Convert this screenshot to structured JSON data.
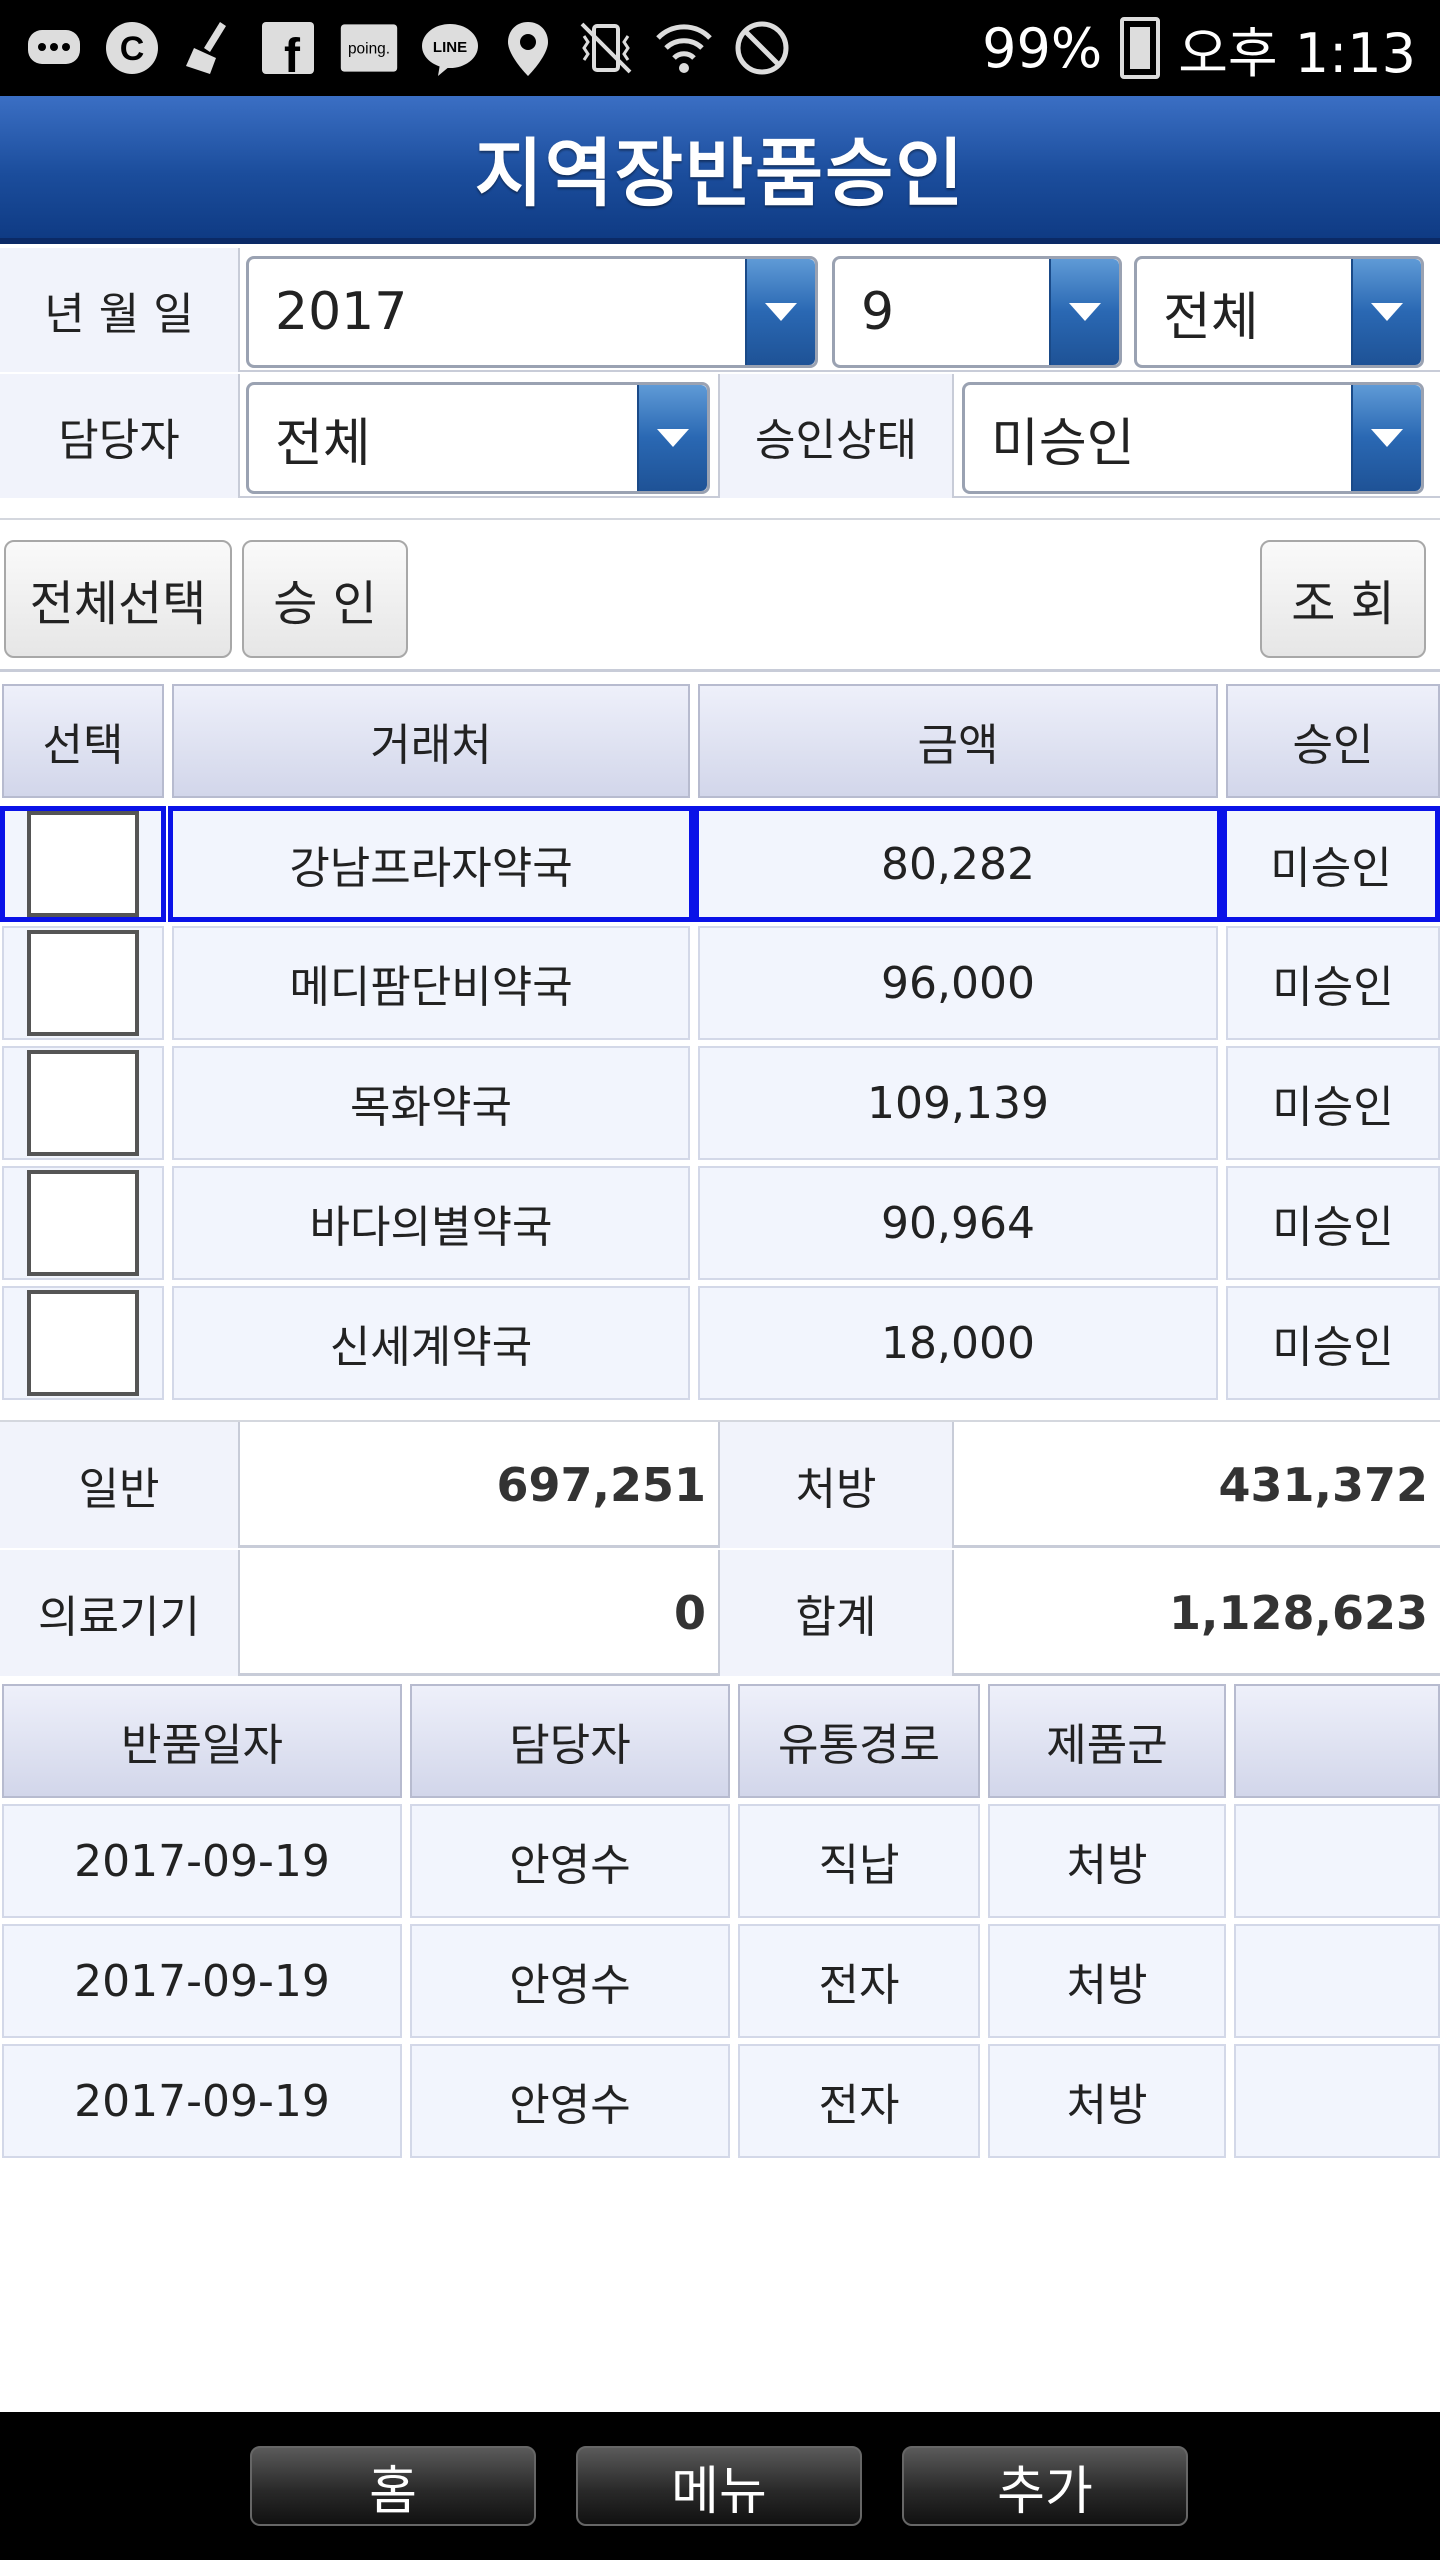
{
  "status_bar": {
    "battery_text": "99%",
    "time": "오후 1:13",
    "icons": [
      "chat-icon",
      "c-app-icon",
      "broom-icon",
      "facebook-icon",
      "poing-icon",
      "line-icon",
      "location-icon",
      "vibrate-off-icon",
      "wifi-icon",
      "block-icon",
      "battery-charging-icon"
    ],
    "poing_label": "poing.",
    "line_label": "LINE",
    "facebook_label": "f"
  },
  "title": "지역장반품승인",
  "filters": {
    "date_label": "년 월 일",
    "year": "2017",
    "month": "9",
    "day": "전체",
    "manager_label": "담당자",
    "manager": "전체",
    "approval_status_label": "승인상태",
    "approval_status": "미승인"
  },
  "buttons": {
    "select_all": "전체선택",
    "approve": "승 인",
    "search": "조 회"
  },
  "list": {
    "headers": [
      "선택",
      "거래처",
      "금액",
      "승인"
    ],
    "rows": [
      {
        "client": "강남프라자약국",
        "amount": "80,282",
        "status": "미승인",
        "selected": true
      },
      {
        "client": "메디팜단비약국",
        "amount": "96,000",
        "status": "미승인",
        "selected": false
      },
      {
        "client": "목화약국",
        "amount": "109,139",
        "status": "미승인",
        "selected": false
      },
      {
        "client": "바다의별약국",
        "amount": "90,964",
        "status": "미승인",
        "selected": false
      },
      {
        "client": "신세계약국",
        "amount": "18,000",
        "status": "미승인",
        "selected": false
      }
    ]
  },
  "summary": {
    "general_label": "일반",
    "general_value": "697,251",
    "prescription_label": "처방",
    "prescription_value": "431,372",
    "device_label": "의료기기",
    "device_value": "0",
    "total_label": "합계",
    "total_value": "1,128,623"
  },
  "detail": {
    "headers": [
      "반품일자",
      "담당자",
      "유통경로",
      "제품군",
      ""
    ],
    "rows": [
      [
        "2017-09-19",
        "안영수",
        "직납",
        "처방",
        ""
      ],
      [
        "2017-09-19",
        "안영수",
        "전자",
        "처방",
        ""
      ],
      [
        "2017-09-19",
        "안영수",
        "전자",
        "처방",
        ""
      ]
    ]
  },
  "bottom_nav": {
    "home": "홈",
    "menu": "메뉴",
    "add": "추가"
  },
  "colors": {
    "title_bar": "#1b4d9c",
    "selected_border": "#0a12e8",
    "dropdown_arrow": "#2a68b3",
    "header_cell": "#d2d6ea",
    "data_cell": "#f2f5fd"
  }
}
